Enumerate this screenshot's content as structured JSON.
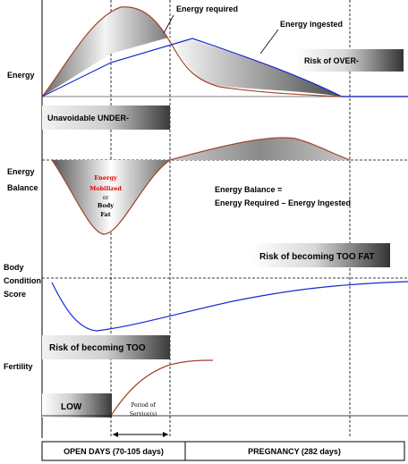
{
  "rows": {
    "energy": "Energy",
    "energy_balance_1": "Energy",
    "energy_balance_2": "Balance",
    "bcs_1": "Body",
    "bcs_2": "Condition",
    "bcs_3": "Score",
    "fertility": "Fertility"
  },
  "annotations": {
    "energy_required": "Energy required",
    "energy_ingested": "Energy ingested",
    "risk_over": "Risk of OVER-",
    "unavoidable_under": "Unavoidable UNDER-",
    "mobilized_1": "Energy",
    "mobilized_2": "Mobilized",
    "mobilized_3": "or",
    "mobilized_4": "Body",
    "mobilized_5": "Fat",
    "balance_eq_1": "Energy Balance =",
    "balance_eq_2": "Energy Required – Energy Ingested",
    "risk_too_fat": "Risk of becoming TOO FAT",
    "risk_too": "Risk of becoming TOO",
    "low": "LOW",
    "service_1": "Period of",
    "service_2": "Service(s)"
  },
  "timeline": {
    "open_days": "OPEN DAYS (70-105 days)",
    "pregnancy": "PREGNANCY (282 days)"
  },
  "colors": {
    "required_curve": "#a0452a",
    "ingested_curve": "#1a28d0",
    "band_dark": "#444444"
  }
}
